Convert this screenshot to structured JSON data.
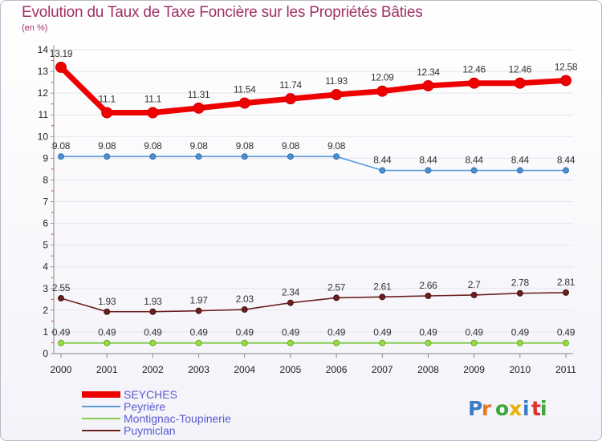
{
  "title": "Evolution du Taux de Taxe Foncière sur les Propriétés Bâties",
  "unit_label": "(en %)",
  "brand": "Proxiti",
  "chart_data": {
    "type": "line",
    "title": "Evolution du Taux de Taxe Foncière sur les Propriétés Bâties",
    "ylabel": "(en %)",
    "ylim": [
      0,
      14
    ],
    "yticks": [
      0,
      1,
      2,
      3,
      4,
      5,
      6,
      7,
      8,
      9,
      10,
      11,
      12,
      13,
      14
    ],
    "x": [
      2000,
      2001,
      2002,
      2003,
      2004,
      2005,
      2006,
      2007,
      2008,
      2009,
      2010,
      2011
    ],
    "series": [
      {
        "name": "SEYCHES",
        "color": "#ee0000",
        "values": [
          13.19,
          11.1,
          11.1,
          11.31,
          11.54,
          11.74,
          11.93,
          12.09,
          12.34,
          12.46,
          12.46,
          12.58
        ],
        "labels": [
          "13.19",
          "11.1",
          "11.1",
          "11.31",
          "11.54",
          "11.74",
          "11.93",
          "12.09",
          "12.34",
          "12.46",
          "12.46",
          "12.58"
        ]
      },
      {
        "name": "Peyrière",
        "color": "#5a9ad8",
        "values": [
          9.08,
          9.08,
          9.08,
          9.08,
          9.08,
          9.08,
          9.08,
          8.44,
          8.44,
          8.44,
          8.44,
          8.44
        ],
        "labels": [
          "9.08",
          "9.08",
          "9.08",
          "9.08",
          "9.08",
          "9.08",
          "9.08",
          "8.44",
          "8.44",
          "8.44",
          "8.44",
          "8.44"
        ]
      },
      {
        "name": "Montignac-Toupinerie",
        "color": "#88cc55",
        "values": [
          0.49,
          0.49,
          0.49,
          0.49,
          0.49,
          0.49,
          0.49,
          0.49,
          0.49,
          0.49,
          0.49,
          0.49
        ],
        "labels": [
          "0.49",
          "0.49",
          "0.49",
          "0.49",
          "0.49",
          "0.49",
          "0.49",
          "0.49",
          "0.49",
          "0.49",
          "0.49",
          "0.49"
        ]
      },
      {
        "name": "Puymiclan",
        "color": "#6b2020",
        "values": [
          2.55,
          1.93,
          1.93,
          1.97,
          2.03,
          2.34,
          2.57,
          2.61,
          2.66,
          2.7,
          2.78,
          2.81
        ],
        "labels": [
          "2.55",
          "1.93",
          "1.93",
          "1.97",
          "2.03",
          "2.34",
          "2.57",
          "2.61",
          "2.66",
          "2.7",
          "2.78",
          "2.81"
        ]
      }
    ]
  }
}
